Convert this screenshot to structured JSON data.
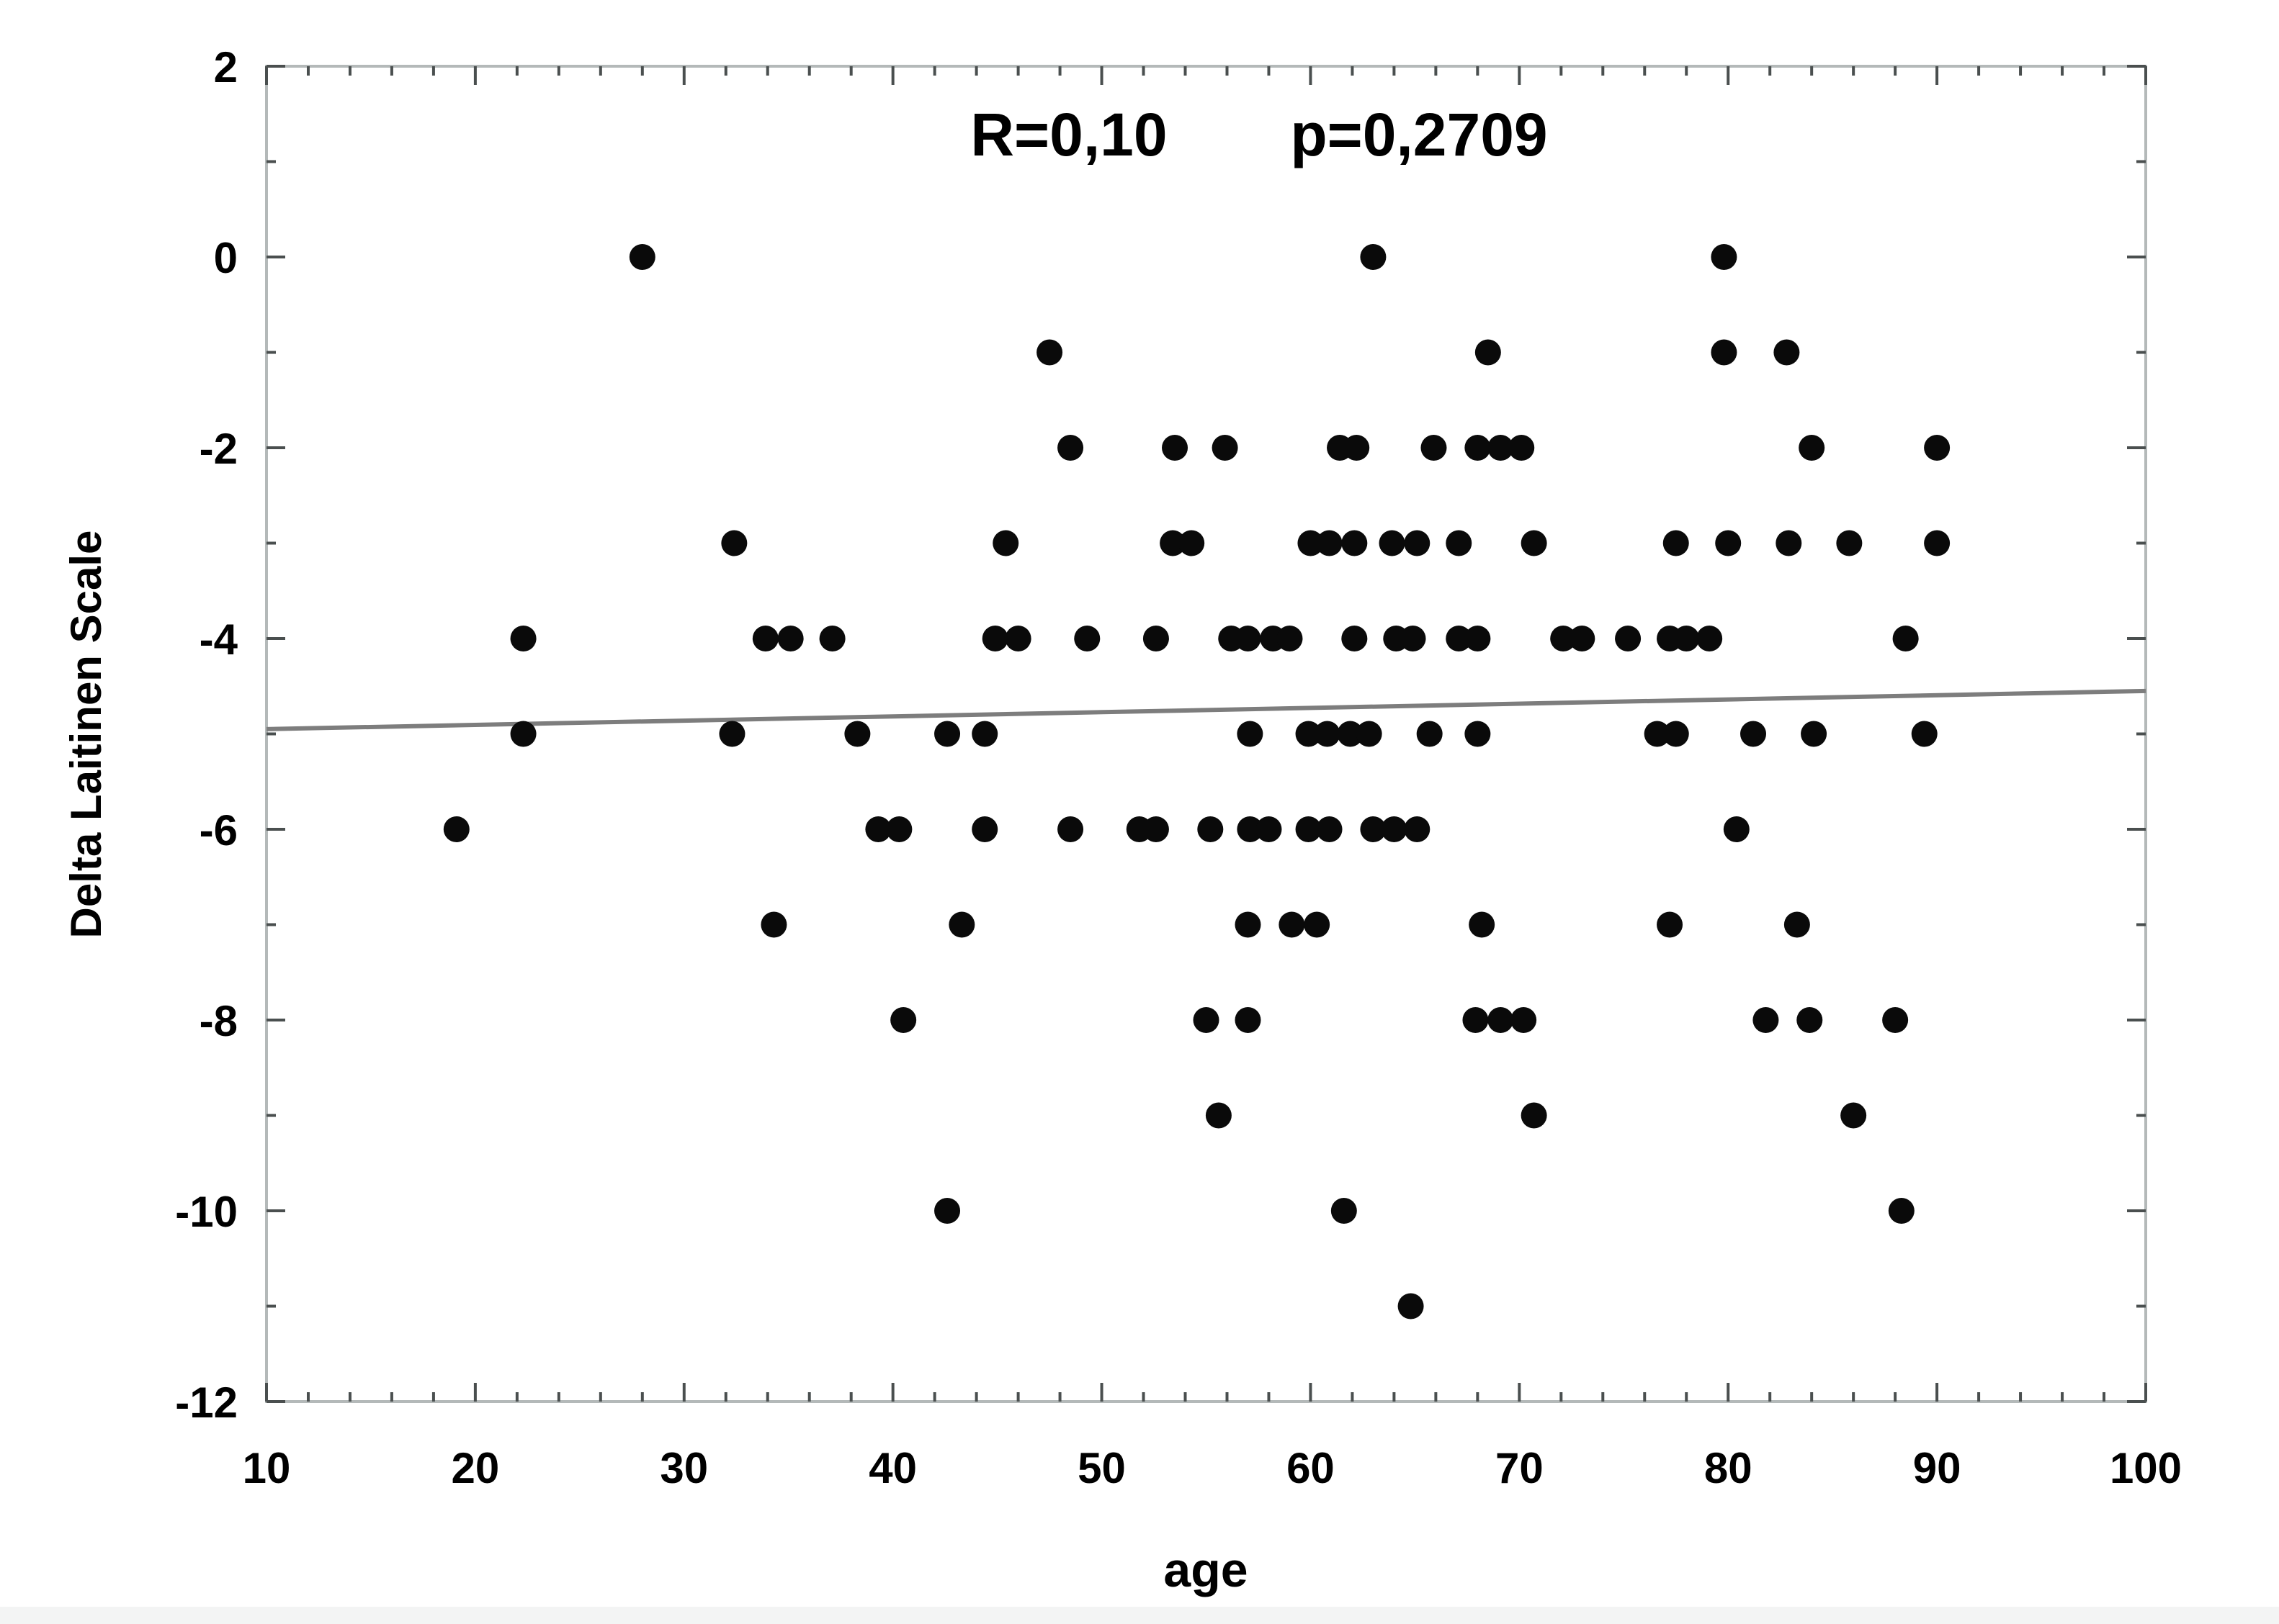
{
  "chart_data": {
    "type": "scatter",
    "annotation": "R=0,10  p=0,2709",
    "annotation_r": "R=0,10",
    "annotation_p": "p=0,2709",
    "xlabel": "age",
    "ylabel": "Delta Laitinen Scale",
    "xlim": [
      10,
      100
    ],
    "ylim": [
      -12,
      2
    ],
    "x_major_ticks": [
      10,
      20,
      30,
      40,
      50,
      60,
      70,
      80,
      90,
      100
    ],
    "x_minor_step": 2,
    "y_major_ticks": [
      2,
      0,
      -2,
      -4,
      -6,
      -8,
      -10,
      -12
    ],
    "y_minor_step": 1,
    "grid": false,
    "legend": "none",
    "regression": {
      "R": "0,10",
      "p": "0,2709",
      "x": [
        10,
        100
      ],
      "y": [
        -4.95,
        -4.55
      ]
    },
    "colors": {
      "point": "#0a0a0a",
      "trend": "#7d7d7d",
      "frame": "#b4b9b9",
      "tick": "#4a4f4f",
      "text": "#000000",
      "background": "#ffffff",
      "page_strip": "#f3f4f4"
    },
    "points": [
      [
        28,
        0
      ],
      [
        63,
        0
      ],
      [
        79.8,
        0
      ],
      [
        47.5,
        -1
      ],
      [
        68.5,
        -1
      ],
      [
        79.8,
        -1
      ],
      [
        82.8,
        -1
      ],
      [
        48.5,
        -2
      ],
      [
        53.5,
        -2
      ],
      [
        55.9,
        -2
      ],
      [
        61.4,
        -2
      ],
      [
        62.2,
        -2
      ],
      [
        65.9,
        -2
      ],
      [
        68,
        -2
      ],
      [
        69.1,
        -2
      ],
      [
        70.1,
        -2
      ],
      [
        84,
        -2
      ],
      [
        90,
        -2
      ],
      [
        32.4,
        -3
      ],
      [
        45.4,
        -3
      ],
      [
        53.4,
        -3
      ],
      [
        54.3,
        -3
      ],
      [
        60,
        -3
      ],
      [
        60.9,
        -3
      ],
      [
        62.1,
        -3
      ],
      [
        63.9,
        -3
      ],
      [
        65.1,
        -3
      ],
      [
        67.1,
        -3
      ],
      [
        70.7,
        -3
      ],
      [
        77.5,
        -3
      ],
      [
        80,
        -3
      ],
      [
        82.9,
        -3
      ],
      [
        85.8,
        -3
      ],
      [
        90,
        -3
      ],
      [
        22.3,
        -4
      ],
      [
        33.9,
        -4
      ],
      [
        35.1,
        -4
      ],
      [
        37.1,
        -4
      ],
      [
        44.9,
        -4
      ],
      [
        46,
        -4
      ],
      [
        49.3,
        -4
      ],
      [
        52.6,
        -4
      ],
      [
        56.2,
        -4
      ],
      [
        57,
        -4
      ],
      [
        58.2,
        -4
      ],
      [
        59,
        -4
      ],
      [
        62.1,
        -4
      ],
      [
        64.1,
        -4
      ],
      [
        64.9,
        -4
      ],
      [
        67.1,
        -4
      ],
      [
        68,
        -4
      ],
      [
        72.1,
        -4
      ],
      [
        73,
        -4
      ],
      [
        75.2,
        -4
      ],
      [
        77.2,
        -4
      ],
      [
        78,
        -4
      ],
      [
        79.1,
        -4
      ],
      [
        88.5,
        -4
      ],
      [
        22.3,
        -5
      ],
      [
        32.3,
        -5
      ],
      [
        38.3,
        -5
      ],
      [
        42.6,
        -5
      ],
      [
        44.4,
        -5
      ],
      [
        57.1,
        -5
      ],
      [
        59.9,
        -5
      ],
      [
        60.8,
        -5
      ],
      [
        61.9,
        -5
      ],
      [
        62.8,
        -5
      ],
      [
        65.7,
        -5
      ],
      [
        68,
        -5
      ],
      [
        76.6,
        -5
      ],
      [
        77.5,
        -5
      ],
      [
        81.2,
        -5
      ],
      [
        84.1,
        -5
      ],
      [
        89.4,
        -5
      ],
      [
        19.1,
        -6
      ],
      [
        39.3,
        -6
      ],
      [
        40.3,
        -6
      ],
      [
        44.4,
        -6
      ],
      [
        48.5,
        -6
      ],
      [
        51.8,
        -6
      ],
      [
        52.6,
        -6
      ],
      [
        55.2,
        -6
      ],
      [
        57.1,
        -6
      ],
      [
        58,
        -6
      ],
      [
        59.9,
        -6
      ],
      [
        60.9,
        -6
      ],
      [
        63,
        -6
      ],
      [
        64,
        -6
      ],
      [
        65.1,
        -6
      ],
      [
        80.4,
        -6
      ],
      [
        34.3,
        -7
      ],
      [
        43.3,
        -7
      ],
      [
        57,
        -7
      ],
      [
        59.1,
        -7
      ],
      [
        60.3,
        -7
      ],
      [
        68.2,
        -7
      ],
      [
        77.2,
        -7
      ],
      [
        83.3,
        -7
      ],
      [
        40.5,
        -8
      ],
      [
        55,
        -8
      ],
      [
        57,
        -8
      ],
      [
        67.9,
        -8
      ],
      [
        69.1,
        -8
      ],
      [
        70.2,
        -8
      ],
      [
        81.8,
        -8
      ],
      [
        83.9,
        -8
      ],
      [
        88,
        -8
      ],
      [
        55.6,
        -9
      ],
      [
        70.7,
        -9
      ],
      [
        86,
        -9
      ],
      [
        42.6,
        -10
      ],
      [
        61.6,
        -10
      ],
      [
        88.3,
        -10
      ],
      [
        64.8,
        -11
      ]
    ]
  }
}
